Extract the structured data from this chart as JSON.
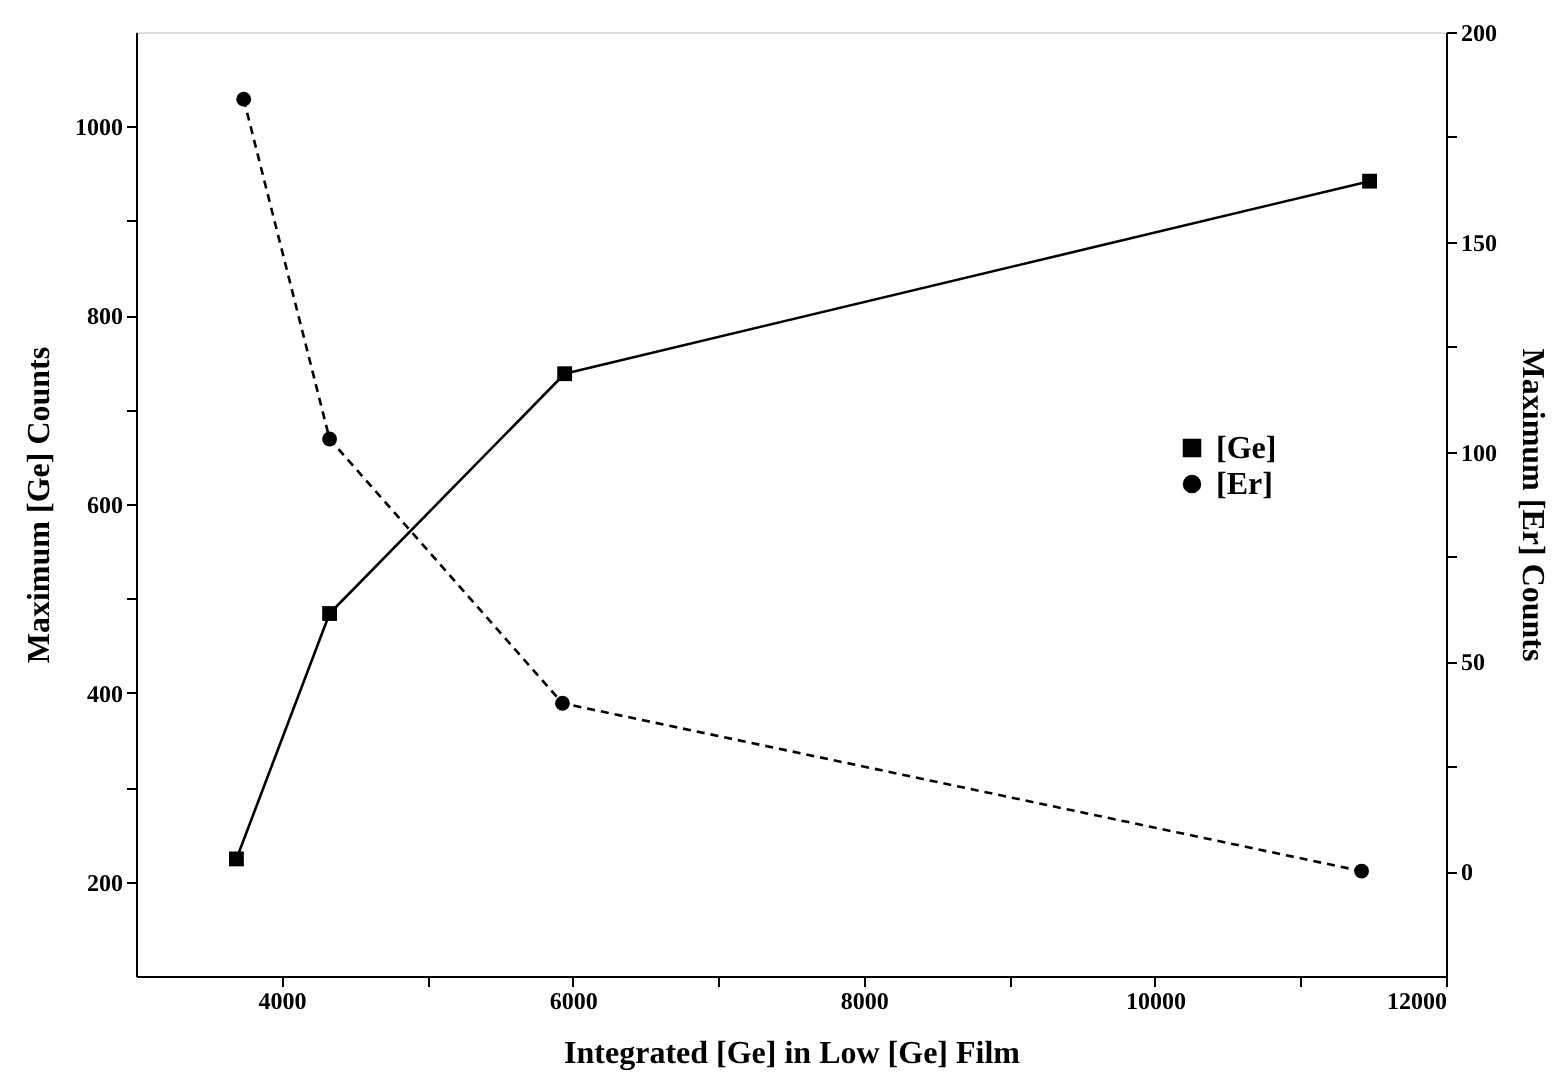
{
  "chart_data": {
    "type": "line",
    "xlabel": "Integrated [Ge] in Low [Ge] Film",
    "ylabel": "Maximum [Ge] Counts",
    "y2label": "Maximum [Er] Counts",
    "xlim": [
      3000,
      12000
    ],
    "xticks": [
      4000,
      {
        "value": 5000,
        "label": null
      },
      6000,
      {
        "value": 7000,
        "label": null
      },
      8000,
      {
        "value": 9000,
        "label": null
      },
      10000,
      {
        "value": 11000,
        "label": null
      },
      12000
    ],
    "ylim": [
      100,
      1100
    ],
    "yticks": [
      200,
      {
        "value": 300,
        "label": null
      },
      400,
      {
        "value": 500,
        "label": null
      },
      600,
      {
        "value": 700,
        "label": null
      },
      800,
      {
        "value": 900,
        "label": null
      },
      1000
    ],
    "y2lim": [
      -25,
      200
    ],
    "y2ticks": [
      0,
      {
        "value": 25,
        "label": null
      },
      50,
      {
        "value": 75,
        "label": null
      },
      100,
      {
        "value": 125,
        "label": null
      },
      150,
      {
        "value": 175,
        "label": null
      },
      200
    ],
    "grid": false,
    "legend": "right",
    "series": [
      {
        "name": "[Ge]",
        "color": "#000000",
        "x": [
          3690,
          4330,
          5945,
          11475
        ],
        "values": [
          224,
          484,
          738,
          942
        ],
        "marker": "square",
        "line_style": "solid"
      },
      {
        "name": "[Er]",
        "color": "#000000",
        "axis": "y2",
        "x": [
          3740,
          4330,
          5930,
          11420
        ],
        "values": [
          184,
          103,
          40,
          0
        ],
        "marker": "circle",
        "line_style": "dashed"
      }
    ]
  }
}
